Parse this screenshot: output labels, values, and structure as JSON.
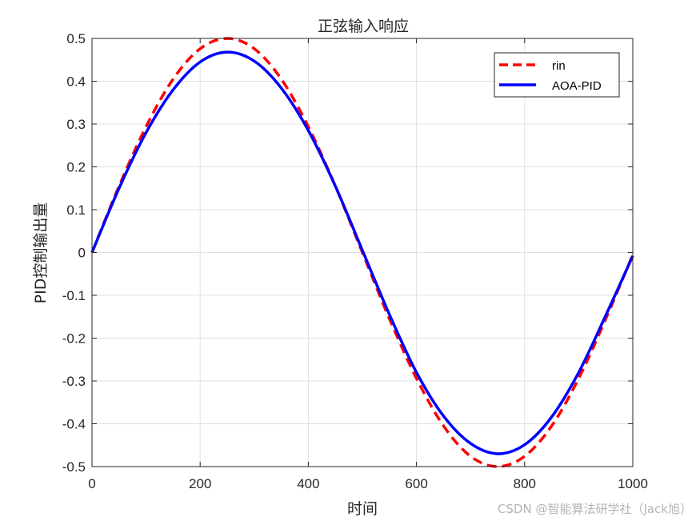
{
  "chart_data": {
    "type": "line",
    "title": "正弦输入响应",
    "xlabel": "时间",
    "ylabel": "PID控制输出量",
    "xlim": [
      0,
      1000
    ],
    "ylim": [
      -0.5,
      0.5
    ],
    "xticks": [
      0,
      200,
      400,
      600,
      800,
      1000
    ],
    "yticks": [
      0.5,
      0.4,
      0.3,
      0.2,
      0.1,
      0,
      -0.1,
      -0.2,
      -0.3,
      -0.4,
      -0.5
    ],
    "grid": true,
    "legend_position": "top-right",
    "x": [
      0,
      50,
      100,
      150,
      200,
      250,
      300,
      350,
      400,
      450,
      500,
      550,
      600,
      650,
      700,
      750,
      800,
      850,
      900,
      950,
      1000
    ],
    "series": [
      {
        "name": "rin",
        "color": "#ff0000",
        "style": "dashed",
        "values": [
          0,
          0.155,
          0.294,
          0.405,
          0.476,
          0.5,
          0.476,
          0.405,
          0.294,
          0.155,
          0,
          -0.155,
          -0.294,
          -0.405,
          -0.476,
          -0.5,
          -0.476,
          -0.405,
          -0.294,
          -0.155,
          -0.005
        ]
      },
      {
        "name": "AOA-PID",
        "color": "#0000ff",
        "style": "solid",
        "values": [
          0,
          0.15,
          0.28,
          0.38,
          0.445,
          0.468,
          0.447,
          0.384,
          0.285,
          0.155,
          0.005,
          -0.145,
          -0.28,
          -0.382,
          -0.446,
          -0.47,
          -0.449,
          -0.384,
          -0.28,
          -0.147,
          -0.008
        ]
      }
    ]
  },
  "watermark": "CSDN @智能算法研学社（Jack旭）"
}
